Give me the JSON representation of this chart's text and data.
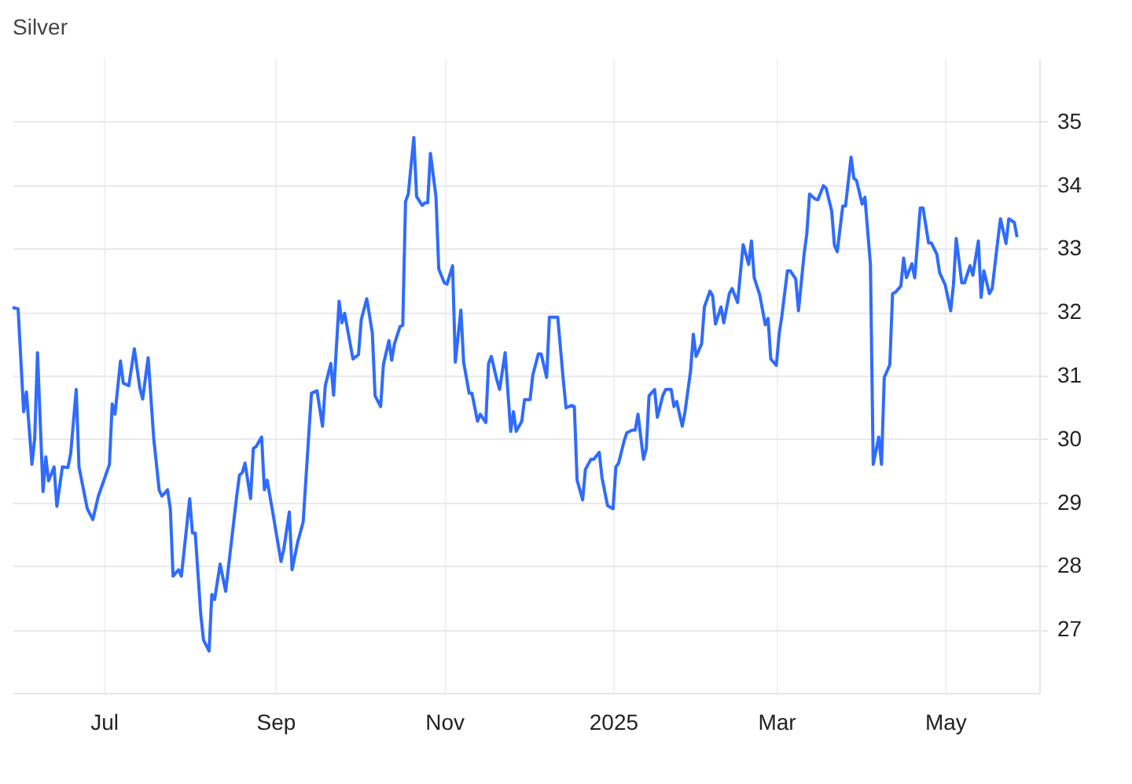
{
  "chart_data": {
    "type": "line",
    "title": "Silver",
    "grid": true,
    "xlim": [
      "2024-05-29",
      "2025-06-04"
    ],
    "xticks": [
      {
        "value": "2024-07-01",
        "label": "Jul"
      },
      {
        "value": "2024-09-01",
        "label": "Sep"
      },
      {
        "value": "2024-11-01",
        "label": "Nov"
      },
      {
        "value": "2025-01-01",
        "label": "2025"
      },
      {
        "value": "2025-03-01",
        "label": "Mar"
      },
      {
        "value": "2025-05-01",
        "label": "May"
      }
    ],
    "ylim": [
      26,
      36
    ],
    "yticks": [
      27,
      28,
      29,
      30,
      31,
      32,
      33,
      34,
      35
    ],
    "x": [
      "2024-05-29",
      "2024-05-31",
      "2024-06-02",
      "2024-06-03",
      "2024-06-05",
      "2024-06-06",
      "2024-06-07",
      "2024-06-09",
      "2024-06-10",
      "2024-06-11",
      "2024-06-13",
      "2024-06-14",
      "2024-06-16",
      "2024-06-18",
      "2024-06-19",
      "2024-06-21",
      "2024-06-22",
      "2024-06-25",
      "2024-06-27",
      "2024-06-29",
      "2024-07-01",
      "2024-07-03",
      "2024-07-04",
      "2024-07-05",
      "2024-07-07",
      "2024-07-08",
      "2024-07-10",
      "2024-07-12",
      "2024-07-14",
      "2024-07-15",
      "2024-07-17",
      "2024-07-19",
      "2024-07-21",
      "2024-07-22",
      "2024-07-24",
      "2024-07-25",
      "2024-07-26",
      "2024-07-28",
      "2024-07-29",
      "2024-08-01",
      "2024-08-02",
      "2024-08-03",
      "2024-08-05",
      "2024-08-06",
      "2024-08-08",
      "2024-08-09",
      "2024-08-10",
      "2024-08-12",
      "2024-08-14",
      "2024-08-18",
      "2024-08-19",
      "2024-08-20",
      "2024-08-21",
      "2024-08-23",
      "2024-08-24",
      "2024-08-25",
      "2024-08-27",
      "2024-08-28",
      "2024-08-29",
      "2024-08-31",
      "2024-09-03",
      "2024-09-04",
      "2024-09-06",
      "2024-09-07",
      "2024-09-09",
      "2024-09-11",
      "2024-09-14",
      "2024-09-16",
      "2024-09-18",
      "2024-09-19",
      "2024-09-21",
      "2024-09-22",
      "2024-09-24",
      "2024-09-25",
      "2024-09-26",
      "2024-09-29",
      "2024-10-01",
      "2024-10-02",
      "2024-10-04",
      "2024-10-06",
      "2024-10-07",
      "2024-10-09",
      "2024-10-10",
      "2024-10-12",
      "2024-10-13",
      "2024-10-14",
      "2024-10-16",
      "2024-10-17",
      "2024-10-18",
      "2024-10-19",
      "2024-10-21",
      "2024-10-22",
      "2024-10-24",
      "2024-10-25",
      "2024-10-26",
      "2024-10-27",
      "2024-10-29",
      "2024-10-30",
      "2024-11-01",
      "2024-11-02",
      "2024-11-04",
      "2024-11-05",
      "2024-11-07",
      "2024-11-08",
      "2024-11-10",
      "2024-11-11",
      "2024-11-13",
      "2024-11-14",
      "2024-11-16",
      "2024-11-17",
      "2024-11-18",
      "2024-11-20",
      "2024-11-21",
      "2024-11-23",
      "2024-11-25",
      "2024-11-26",
      "2024-11-27",
      "2024-11-29",
      "2024-11-30",
      "2024-12-02",
      "2024-12-03",
      "2024-12-05",
      "2024-12-06",
      "2024-12-08",
      "2024-12-09",
      "2024-12-12",
      "2024-12-14",
      "2024-12-15",
      "2024-12-17",
      "2024-12-18",
      "2024-12-19",
      "2024-12-21",
      "2024-12-22",
      "2024-12-24",
      "2024-12-25",
      "2024-12-27",
      "2024-12-28",
      "2024-12-30",
      "2025-01-01",
      "2025-01-02",
      "2025-01-03",
      "2025-01-05",
      "2025-01-06",
      "2025-01-08",
      "2025-01-09",
      "2025-01-10",
      "2025-01-12",
      "2025-01-13",
      "2025-01-14",
      "2025-01-16",
      "2025-01-17",
      "2025-01-19",
      "2025-01-20",
      "2025-01-22",
      "2025-01-23",
      "2025-01-24",
      "2025-01-26",
      "2025-01-27",
      "2025-01-29",
      "2025-01-30",
      "2025-01-31",
      "2025-02-02",
      "2025-02-03",
      "2025-02-05",
      "2025-02-06",
      "2025-02-07",
      "2025-02-09",
      "2025-02-10",
      "2025-02-12",
      "2025-02-13",
      "2025-02-15",
      "2025-02-17",
      "2025-02-19",
      "2025-02-20",
      "2025-02-21",
      "2025-02-23",
      "2025-02-25",
      "2025-02-26",
      "2025-02-27",
      "2025-03-01",
      "2025-03-02",
      "2025-03-03",
      "2025-03-05",
      "2025-03-06",
      "2025-03-08",
      "2025-03-09",
      "2025-03-11",
      "2025-03-12",
      "2025-03-13",
      "2025-03-15",
      "2025-03-16",
      "2025-03-18",
      "2025-03-19",
      "2025-03-21",
      "2025-03-22",
      "2025-03-23",
      "2025-03-25",
      "2025-03-26",
      "2025-03-28",
      "2025-03-29",
      "2025-03-30",
      "2025-04-01",
      "2025-04-02",
      "2025-04-04",
      "2025-04-05",
      "2025-04-07",
      "2025-04-08",
      "2025-04-09",
      "2025-04-11",
      "2025-04-12",
      "2025-04-13",
      "2025-04-15",
      "2025-04-16",
      "2025-04-17",
      "2025-04-19",
      "2025-04-20",
      "2025-04-22",
      "2025-04-23",
      "2025-04-25",
      "2025-04-26",
      "2025-04-28",
      "2025-04-29",
      "2025-05-01",
      "2025-05-03",
      "2025-05-04",
      "2025-05-05",
      "2025-05-07",
      "2025-05-08",
      "2025-05-10",
      "2025-05-11",
      "2025-05-13",
      "2025-05-14",
      "2025-05-15",
      "2025-05-17",
      "2025-05-18",
      "2025-05-20",
      "2025-05-21",
      "2025-05-23",
      "2025-05-24",
      "2025-05-26",
      "2025-05-27"
    ],
    "series": [
      {
        "color": "#2f6bff",
        "values": [
          32.07,
          32.05,
          30.43,
          30.74,
          29.6,
          30.01,
          31.36,
          29.17,
          29.72,
          29.34,
          29.56,
          28.94,
          29.56,
          29.55,
          29.77,
          30.78,
          29.56,
          28.9,
          28.73,
          29.1,
          29.35,
          29.6,
          30.55,
          30.39,
          31.23,
          30.88,
          30.84,
          31.42,
          30.8,
          30.63,
          31.28,
          30.01,
          29.19,
          29.1,
          29.2,
          28.9,
          27.84,
          27.94,
          27.84,
          29.06,
          28.52,
          28.52,
          27.24,
          26.83,
          26.66,
          27.55,
          27.47,
          28.03,
          27.6,
          29.1,
          29.43,
          29.47,
          29.62,
          29.06,
          29.85,
          29.88,
          30.03,
          29.2,
          29.35,
          28.85,
          28.07,
          28.26,
          28.85,
          27.94,
          28.37,
          28.69,
          30.72,
          30.76,
          30.2,
          30.84,
          31.19,
          30.69,
          32.17,
          31.83,
          31.98,
          31.26,
          31.33,
          31.88,
          32.21,
          31.67,
          30.68,
          30.51,
          31.17,
          31.55,
          31.24,
          31.5,
          31.77,
          31.79,
          33.74,
          33.86,
          34.75,
          33.82,
          33.68,
          33.72,
          33.72,
          34.5,
          33.82,
          32.68,
          32.46,
          32.44,
          32.73,
          31.21,
          32.03,
          31.21,
          30.72,
          30.72,
          30.28,
          30.39,
          30.26,
          31.19,
          31.3,
          30.93,
          30.78,
          31.36,
          30.12,
          30.43,
          30.12,
          30.28,
          30.62,
          30.62,
          31.01,
          31.34,
          31.34,
          30.97,
          31.92,
          31.92,
          30.93,
          30.49,
          30.53,
          30.51,
          29.35,
          29.04,
          29.52,
          29.68,
          29.68,
          29.79,
          29.39,
          28.95,
          28.9,
          29.56,
          29.62,
          29.97,
          30.1,
          30.14,
          30.14,
          30.39,
          29.68,
          29.85,
          30.68,
          30.78,
          30.34,
          30.69,
          30.78,
          30.78,
          30.51,
          30.59,
          30.2,
          30.43,
          31.07,
          31.65,
          31.3,
          31.5,
          32.08,
          32.33,
          32.25,
          31.81,
          32.08,
          31.83,
          32.29,
          32.37,
          32.15,
          33.06,
          32.75,
          33.12,
          32.54,
          32.27,
          31.8,
          31.9,
          31.26,
          31.16,
          31.65,
          31.94,
          32.65,
          32.65,
          32.52,
          32.02,
          32.9,
          33.23,
          33.86,
          33.78,
          33.77,
          33.99,
          33.95,
          33.59,
          33.05,
          32.95,
          33.67,
          33.67,
          34.44,
          34.11,
          34.07,
          33.7,
          33.81,
          32.75,
          29.6,
          30.03,
          29.6,
          30.97,
          31.17,
          32.29,
          32.31,
          32.41,
          32.85,
          32.54,
          32.76,
          32.54,
          33.64,
          33.64,
          33.09,
          33.09,
          32.91,
          32.62,
          32.43,
          32.02,
          32.43,
          33.16,
          32.46,
          32.46,
          32.73,
          32.58,
          33.12,
          32.23,
          32.65,
          32.29,
          32.37,
          33.12,
          33.47,
          33.08,
          33.47,
          33.41,
          33.18
        ]
      }
    ]
  }
}
